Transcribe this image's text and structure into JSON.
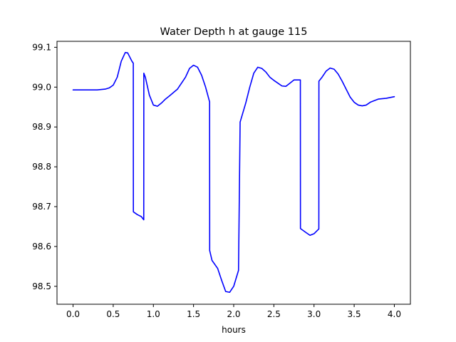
{
  "chart_data": {
    "type": "line",
    "title": "Water Depth h at gauge 115",
    "xlabel": "hours",
    "ylabel": "",
    "xlim": [
      -0.2,
      4.2
    ],
    "ylim": [
      98.455,
      99.115
    ],
    "grid": false,
    "x_ticks": [
      "0.0",
      "0.5",
      "1.0",
      "1.5",
      "2.0",
      "2.5",
      "3.0",
      "3.5",
      "4.0"
    ],
    "y_ticks": [
      "98.5",
      "98.6",
      "98.7",
      "98.8",
      "98.9",
      "99.0",
      "99.1"
    ],
    "x_tick_values": [
      0.0,
      0.5,
      1.0,
      1.5,
      2.0,
      2.5,
      3.0,
      3.5,
      4.0
    ],
    "y_tick_values": [
      98.5,
      98.6,
      98.7,
      98.8,
      98.9,
      99.0,
      99.1
    ],
    "series": [
      {
        "color": "#0000ff",
        "x": [
          0.0,
          0.1,
          0.2,
          0.3,
          0.4,
          0.45,
          0.5,
          0.55,
          0.6,
          0.65,
          0.68,
          0.7,
          0.73,
          0.75,
          0.751,
          0.8,
          0.85,
          0.88,
          0.881,
          0.9,
          0.95,
          1.0,
          1.05,
          1.1,
          1.15,
          1.2,
          1.3,
          1.4,
          1.45,
          1.5,
          1.55,
          1.6,
          1.65,
          1.7,
          1.701,
          1.73,
          1.8,
          1.85,
          1.9,
          1.95,
          2.0,
          2.03,
          2.06,
          2.08,
          2.081,
          2.15,
          2.2,
          2.25,
          2.3,
          2.35,
          2.4,
          2.45,
          2.5,
          2.55,
          2.6,
          2.65,
          2.7,
          2.75,
          2.8,
          2.83,
          2.831,
          2.9,
          2.95,
          3.0,
          3.03,
          3.06,
          3.061,
          3.1,
          3.15,
          3.2,
          3.25,
          3.3,
          3.35,
          3.4,
          3.45,
          3.5,
          3.55,
          3.6,
          3.65,
          3.7,
          3.75,
          3.8,
          3.9,
          4.0
        ],
        "values": [
          98.993,
          98.993,
          98.993,
          98.993,
          98.995,
          98.998,
          99.005,
          99.025,
          99.065,
          99.087,
          99.086,
          99.078,
          99.066,
          99.06,
          98.687,
          98.68,
          98.675,
          98.667,
          99.035,
          99.025,
          98.98,
          98.955,
          98.952,
          98.96,
          98.97,
          98.978,
          98.995,
          99.025,
          99.047,
          99.055,
          99.05,
          99.03,
          99.0,
          98.963,
          98.59,
          98.565,
          98.545,
          98.515,
          98.487,
          98.485,
          98.5,
          98.52,
          98.54,
          98.913,
          98.913,
          98.96,
          99.0,
          99.035,
          99.05,
          99.047,
          99.038,
          99.025,
          99.017,
          99.01,
          99.003,
          99.002,
          99.01,
          99.018,
          99.018,
          99.018,
          98.645,
          98.635,
          98.628,
          98.632,
          98.638,
          98.644,
          99.015,
          99.025,
          99.04,
          99.048,
          99.045,
          99.033,
          99.015,
          98.995,
          98.975,
          98.962,
          98.955,
          98.953,
          98.955,
          98.962,
          98.966,
          98.97,
          98.972,
          98.976
        ]
      }
    ]
  }
}
